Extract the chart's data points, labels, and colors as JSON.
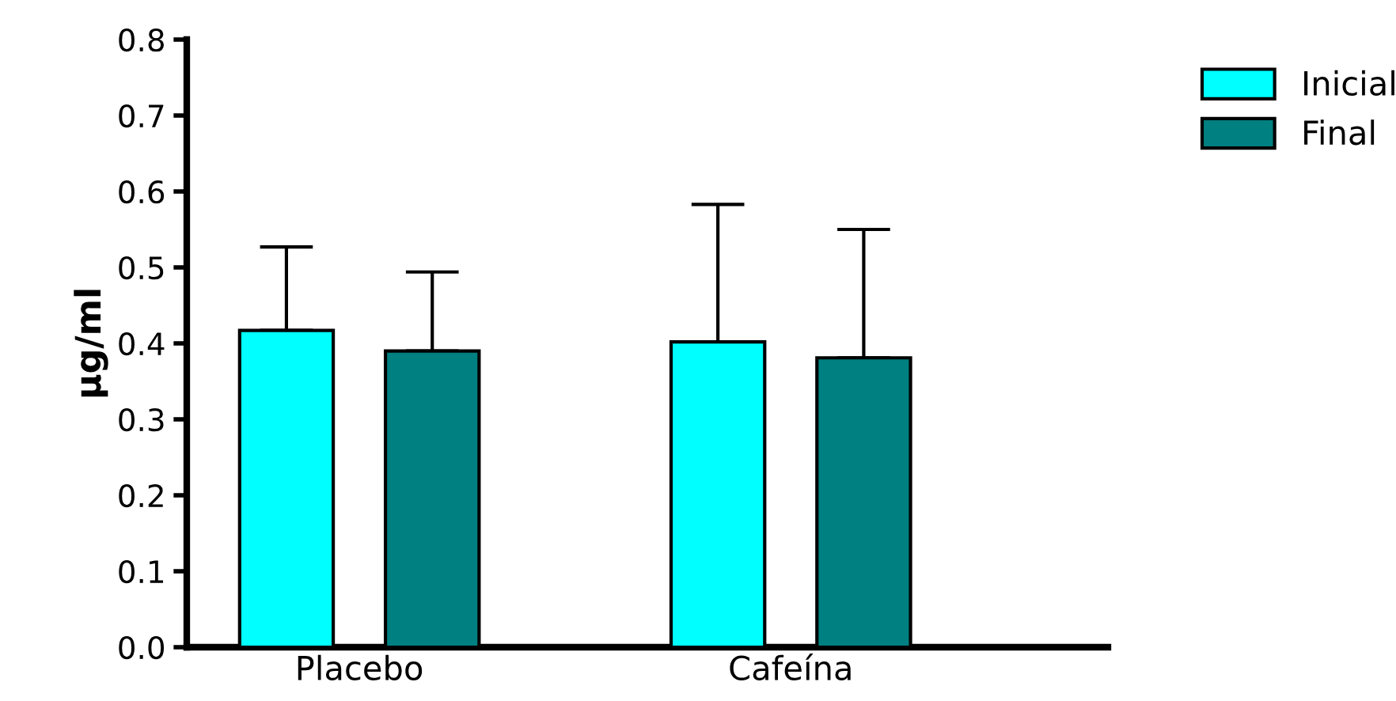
{
  "chart_data": {
    "type": "bar",
    "ylabel": "µg/ml",
    "categories": [
      "Placebo",
      "Cafeína"
    ],
    "series": [
      {
        "name": "Inicial",
        "color": "#00ffff",
        "values": [
          0.417,
          0.402
        ],
        "errors": [
          [
            0.417,
            0.527
          ],
          [
            0.402,
            0.583
          ]
        ]
      },
      {
        "name": "Final",
        "color": "#008080",
        "values": [
          0.39,
          0.381
        ],
        "errors": [
          [
            0.39,
            0.494
          ],
          [
            0.381,
            0.55
          ]
        ]
      }
    ],
    "ylim": [
      0,
      0.8
    ],
    "yticks": [
      {
        "value": 0,
        "label": "0.0"
      },
      0.1,
      0.2,
      0.3,
      0.4,
      0.5,
      0.6,
      0.7,
      0.8
    ],
    "grid": false,
    "legend": "top right"
  }
}
